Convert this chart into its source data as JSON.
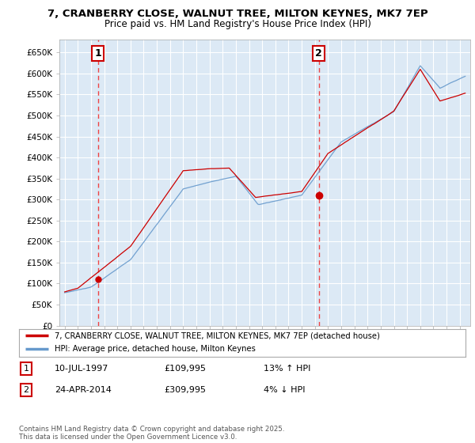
{
  "title": "7, CRANBERRY CLOSE, WALNUT TREE, MILTON KEYNES, MK7 7EP",
  "subtitle": "Price paid vs. HM Land Registry's House Price Index (HPI)",
  "ylim": [
    0,
    680000
  ],
  "yticks": [
    0,
    50000,
    100000,
    150000,
    200000,
    250000,
    300000,
    350000,
    400000,
    450000,
    500000,
    550000,
    600000,
    650000
  ],
  "ytick_labels": [
    "£0",
    "£50K",
    "£100K",
    "£150K",
    "£200K",
    "£250K",
    "£300K",
    "£350K",
    "£400K",
    "£450K",
    "£500K",
    "£550K",
    "£600K",
    "£650K"
  ],
  "chart_bg_color": "#dce9f5",
  "fig_bg_color": "#ffffff",
  "grid_color": "#ffffff",
  "line1_color": "#cc0000",
  "line2_color": "#6699cc",
  "vline_color": "#ee4444",
  "sale1_year": 1997.53,
  "sale1_price": 109995,
  "sale2_year": 2014.31,
  "sale2_price": 309995,
  "legend_line1": "7, CRANBERRY CLOSE, WALNUT TREE, MILTON KEYNES, MK7 7EP (detached house)",
  "legend_line2": "HPI: Average price, detached house, Milton Keynes",
  "table_row1": [
    "1",
    "10-JUL-1997",
    "£109,995",
    "13% ↑ HPI"
  ],
  "table_row2": [
    "2",
    "24-APR-2014",
    "£309,995",
    "4% ↓ HPI"
  ],
  "footer": "Contains HM Land Registry data © Crown copyright and database right 2025.\nThis data is licensed under the Open Government Licence v3.0."
}
